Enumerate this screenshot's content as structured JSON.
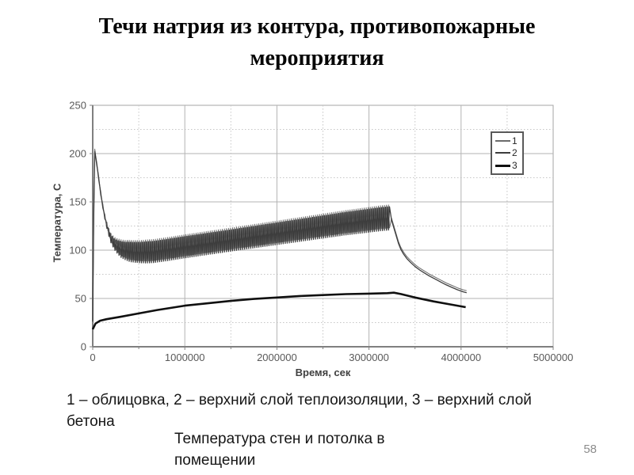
{
  "slide": {
    "title": "Течи натрия из контура, противопожарные мероприятия",
    "caption_legend": "1 – облицовка, 2 – верхний слой теплоизоляции, 3 – верхний слой бетона",
    "caption_center": "Температура стен и потолка в помещении",
    "page_number": "58"
  },
  "chart_data": {
    "type": "line",
    "title": "",
    "xlabel": "Время, сек",
    "ylabel": "Температура, С",
    "xlim": [
      0,
      5000000
    ],
    "ylim": [
      0,
      250
    ],
    "x_ticks": [
      0,
      1000000,
      2000000,
      3000000,
      4000000,
      5000000
    ],
    "y_ticks": [
      0,
      50,
      100,
      150,
      200,
      250
    ],
    "x_minor_step": 500000,
    "y_minor_step": 25,
    "grid": true,
    "legend_position": "top-right",
    "colors": {
      "grid_major": "#b3b3b3",
      "grid_minor": "#c6c6c6",
      "plot_border": "#a6a6a6",
      "axis": "#808080",
      "tick_text": "#595959",
      "axis_title": "#404040",
      "legend_border": "#595959",
      "page_number": "#8c8c8c"
    },
    "oscillation": {
      "period_sec": 22000,
      "end_sec": 3230000,
      "midline_points": [
        [
          0,
          28
        ],
        [
          18000,
          207
        ],
        [
          45000,
          190
        ],
        [
          70000,
          172
        ],
        [
          95000,
          155
        ],
        [
          120000,
          141
        ],
        [
          145000,
          130
        ],
        [
          170000,
          121
        ],
        [
          200000,
          113
        ],
        [
          235000,
          108
        ],
        [
          270000,
          105
        ],
        [
          310000,
          102.5
        ],
        [
          360000,
          101
        ],
        [
          420000,
          100
        ],
        [
          520000,
          99.5
        ],
        [
          650000,
          100
        ],
        [
          800000,
          102
        ],
        [
          1000000,
          105
        ],
        [
          1250000,
          108.5
        ],
        [
          1500000,
          112
        ],
        [
          1750000,
          115.5
        ],
        [
          2000000,
          119
        ],
        [
          2250000,
          122.5
        ],
        [
          2500000,
          126
        ],
        [
          2750000,
          129.5
        ],
        [
          3000000,
          132.5
        ],
        [
          3120000,
          134
        ],
        [
          3230000,
          135
        ]
      ],
      "amplitude_points": [
        [
          0,
          0
        ],
        [
          120000,
          1
        ],
        [
          200000,
          4
        ],
        [
          300000,
          8
        ],
        [
          400000,
          10
        ],
        [
          600000,
          11
        ],
        [
          1500000,
          11
        ],
        [
          2500000,
          11.5
        ],
        [
          3230000,
          12
        ]
      ],
      "drop_points": [
        [
          3245000,
          133
        ],
        [
          3270000,
          125
        ],
        [
          3295000,
          117
        ],
        [
          3320000,
          109
        ],
        [
          3345000,
          103
        ],
        [
          3375000,
          98
        ],
        [
          3410000,
          93.5
        ],
        [
          3450000,
          89.5
        ],
        [
          3500000,
          85
        ],
        [
          3550000,
          81.5
        ],
        [
          3600000,
          78.5
        ],
        [
          3660000,
          75
        ],
        [
          3720000,
          72
        ],
        [
          3780000,
          69
        ],
        [
          3840000,
          66
        ],
        [
          3900000,
          63.5
        ],
        [
          3960000,
          61
        ],
        [
          4020000,
          59
        ],
        [
          4060000,
          58
        ]
      ]
    },
    "series": [
      {
        "name": "1",
        "description": "облицовка",
        "type": "oscillating",
        "offset": 0,
        "phase": 0,
        "color": "#6b6b6b",
        "stroke_width": 1,
        "legend_sample_height": 2
      },
      {
        "name": "2",
        "description": "верхний слой теплоизоляции",
        "type": "oscillating",
        "offset": -2,
        "phase": 1,
        "color": "#3d3d3d",
        "stroke_width": 1.3,
        "legend_sample_height": 2
      },
      {
        "name": "3",
        "description": "верхний слой бетона",
        "type": "smooth",
        "color": "#101010",
        "stroke_width": 2.6,
        "legend_sample_height": 3,
        "points": [
          [
            0,
            18
          ],
          [
            30000,
            24
          ],
          [
            80000,
            27
          ],
          [
            150000,
            28.5
          ],
          [
            300000,
            31
          ],
          [
            500000,
            34.5
          ],
          [
            700000,
            38
          ],
          [
            1000000,
            42.5
          ],
          [
            1250000,
            45
          ],
          [
            1500000,
            47.5
          ],
          [
            1750000,
            49.5
          ],
          [
            2000000,
            51
          ],
          [
            2250000,
            52.5
          ],
          [
            2500000,
            53.5
          ],
          [
            2750000,
            54.5
          ],
          [
            3000000,
            55
          ],
          [
            3200000,
            55.5
          ],
          [
            3270000,
            56
          ],
          [
            3350000,
            54.5
          ],
          [
            3500000,
            51
          ],
          [
            3700000,
            47
          ],
          [
            3900000,
            43.5
          ],
          [
            4050000,
            41
          ]
        ]
      }
    ]
  }
}
